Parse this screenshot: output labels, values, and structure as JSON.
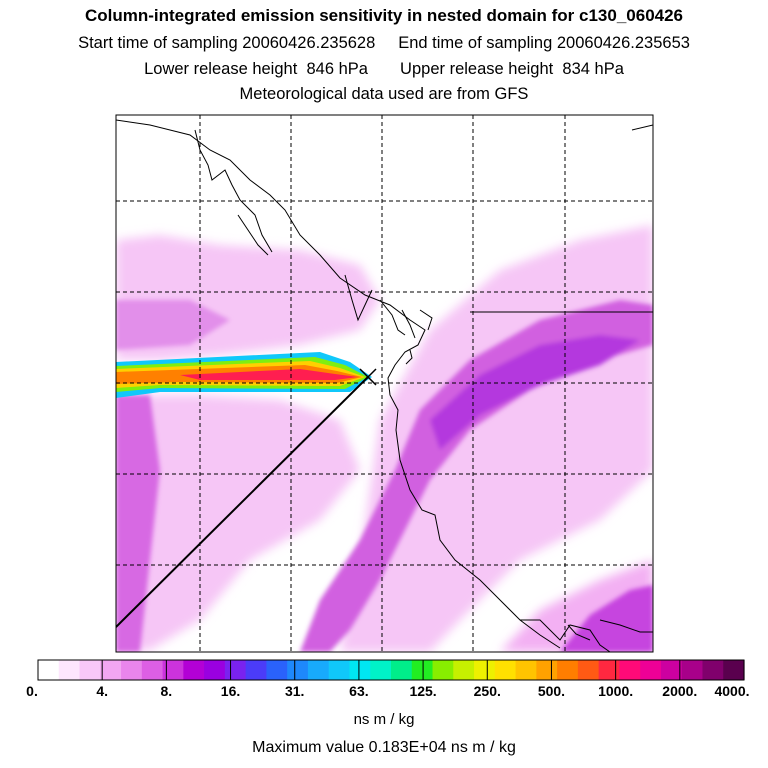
{
  "header": {
    "title": "Column-integrated emission sensitivity in nested domain for c130_060426",
    "start_label": "Start time of sampling",
    "start_value": "20060426.235628",
    "end_label": "End time of sampling",
    "end_value": "20060426.235653",
    "lower_label": "Lower release height",
    "lower_value": "846 hPa",
    "upper_label": "Upper release height",
    "upper_value": "834 hPa",
    "met_note": "Meteorological data used are from GFS"
  },
  "colorbar": {
    "tick_labels": [
      "0.",
      "4.",
      "8.",
      "16.",
      "31.",
      "63.",
      "125.",
      "250.",
      "500.",
      "1000.",
      "2000.",
      "4000."
    ],
    "colors": [
      "#ffffff",
      "#fde6fd",
      "#f8c8f8",
      "#f2a6f2",
      "#e985ec",
      "#dd5fe4",
      "#cc33dd",
      "#b300d6",
      "#9a00e0",
      "#7a22ef",
      "#4b3cf8",
      "#2a62fb",
      "#1e88fc",
      "#18aafc",
      "#10c8fa",
      "#00e6f2",
      "#00f2c8",
      "#00ee8a",
      "#22ee22",
      "#88ee00",
      "#c6f000",
      "#eef000",
      "#ffe000",
      "#ffc400",
      "#ffa200",
      "#ff7e00",
      "#ff5a14",
      "#ff2840",
      "#ff0a78",
      "#ee0096",
      "#cc00a0",
      "#a8008a",
      "#80006c",
      "#5a004e"
    ],
    "units": "ns m / kg"
  },
  "max_value": "Maximum value  0.183E+04 ns m / kg"
}
